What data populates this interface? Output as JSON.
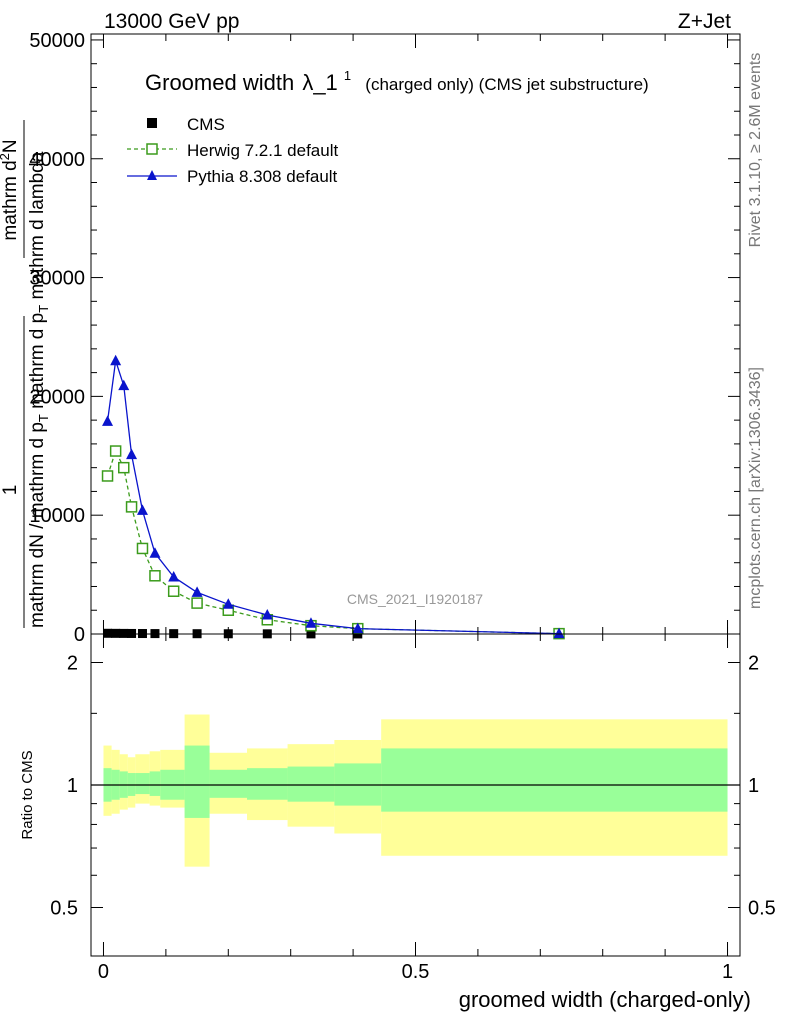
{
  "header": {
    "left": "13000 GeV pp",
    "right": "Z+Jet"
  },
  "side": {
    "rivet": "Rivet 3.1.10, ≥ 2.6M events",
    "mcplots": "mcplots.cern.ch [arXiv:1306.3436]"
  },
  "chart_data": [
    {
      "type": "line",
      "title": "Groomed width",
      "title_symbol": "λ_1",
      "title_sup": "1",
      "title_suffix": "(charged only) (CMS jet substructure)",
      "analysis_label": "CMS_2021_I1920187",
      "ylabel_lines": [
        "1",
        "mathrm dN / mathrm d p_T mathrm d p_T mathrm d lambda",
        "mathrm d²N"
      ],
      "ylabel_parts": [
        "1",
        "mathrm dN",
        " / mathrm d p",
        "T",
        " mathrm d p",
        "T",
        " mathrm d lambda",
        "mathrm d",
        "2",
        "N"
      ],
      "xlim": [
        -0.02,
        1.02
      ],
      "ylim": [
        0,
        50500
      ],
      "yticks": [
        0,
        10000,
        20000,
        30000,
        40000,
        50000
      ],
      "ytick_labels": [
        "0",
        "10000",
        "20000",
        "30000",
        "40000",
        "50000"
      ],
      "grid": false,
      "legend_position": "top-left",
      "series": [
        {
          "name": "CMS",
          "color": "#000000",
          "marker": "square",
          "x": [
            0.0065,
            0.0195,
            0.0325,
            0.045,
            0.0625,
            0.0825,
            0.1125,
            0.15,
            0.2,
            0.2625,
            0.3325,
            0.4075,
            0.73
          ],
          "y": [
            60,
            55,
            50,
            45,
            40,
            35,
            30,
            25,
            20,
            15,
            10,
            5,
            2
          ]
        },
        {
          "name": "Herwig 7.2.1 default",
          "color": "#3b9b1c",
          "marker": "open-square",
          "dashed": true,
          "x": [
            0.0065,
            0.0195,
            0.0325,
            0.045,
            0.0625,
            0.0825,
            0.1125,
            0.15,
            0.2,
            0.2625,
            0.3325,
            0.4075,
            0.73
          ],
          "y": [
            13300,
            15400,
            14000,
            10700,
            7200,
            4900,
            3600,
            2600,
            2000,
            1200,
            700,
            450,
            30
          ]
        },
        {
          "name": "Pythia 8.308 default",
          "color": "#0a14cc",
          "marker": "triangle",
          "x": [
            0.0065,
            0.0195,
            0.0325,
            0.045,
            0.0625,
            0.0825,
            0.1125,
            0.15,
            0.2,
            0.2625,
            0.3325,
            0.4075,
            0.73
          ],
          "y": [
            17900,
            23000,
            20900,
            15100,
            10400,
            6800,
            4800,
            3500,
            2500,
            1600,
            900,
            450,
            30
          ]
        }
      ]
    },
    {
      "type": "area",
      "ylabel": "Ratio to CMS",
      "xlabel": "groomed width (charged-only)",
      "xlim": [
        -0.02,
        1.02
      ],
      "ylim": [
        0.38,
        2.35
      ],
      "xticks": [
        0,
        0.5,
        1
      ],
      "xtick_labels": [
        "0",
        "0.5",
        "1"
      ],
      "yticks": [
        0.5,
        1,
        2
      ],
      "ytick_labels": [
        "0.5",
        "1",
        "2"
      ],
      "yminor_ticks": [
        0.6,
        0.7,
        0.8,
        0.9,
        1.5
      ],
      "reference_line": 1,
      "bin_edges": [
        0,
        0.013,
        0.026,
        0.039,
        0.051,
        0.074,
        0.091,
        0.13,
        0.17,
        0.23,
        0.295,
        0.37,
        0.445,
        1.0
      ],
      "bands": [
        {
          "kind": "total uncertainty",
          "color": "#ffff99",
          "low": [
            0.84,
            0.85,
            0.87,
            0.88,
            0.9,
            0.89,
            0.88,
            0.63,
            0.85,
            0.82,
            0.79,
            0.76,
            0.67
          ],
          "high": [
            1.25,
            1.22,
            1.19,
            1.17,
            1.19,
            1.21,
            1.22,
            1.49,
            1.2,
            1.23,
            1.26,
            1.29,
            1.45
          ]
        },
        {
          "kind": "statistical uncertainty",
          "color": "#99ff99",
          "low": [
            0.91,
            0.92,
            0.93,
            0.94,
            0.95,
            0.94,
            0.92,
            0.83,
            0.93,
            0.92,
            0.91,
            0.89,
            0.86
          ],
          "high": [
            1.1,
            1.09,
            1.08,
            1.07,
            1.07,
            1.08,
            1.09,
            1.25,
            1.09,
            1.1,
            1.11,
            1.13,
            1.23
          ]
        }
      ]
    }
  ]
}
